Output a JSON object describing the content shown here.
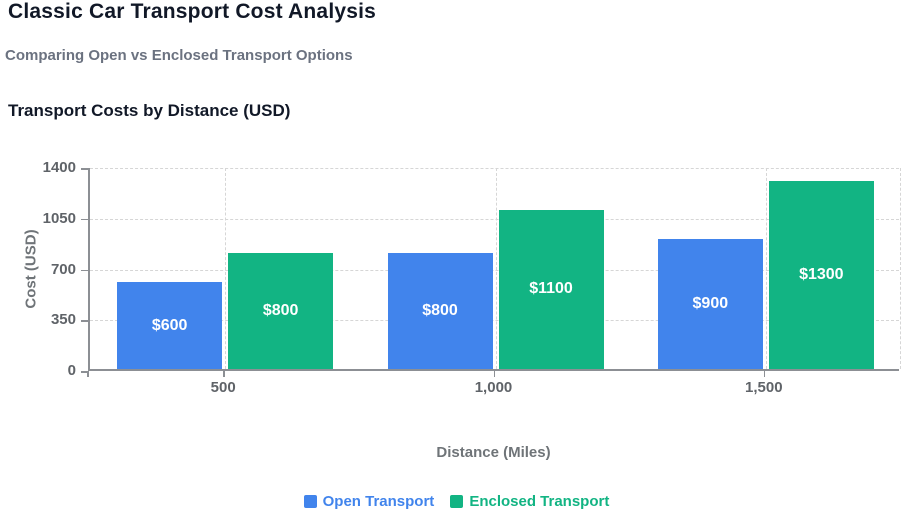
{
  "page": {
    "title": "Classic Car Transport Cost Analysis",
    "subtitle": "Comparing Open vs Enclosed Transport Options"
  },
  "chart_data": {
    "type": "bar",
    "title": "Transport Costs by Distance (USD)",
    "xlabel": "Distance (Miles)",
    "ylabel": "Cost (USD)",
    "categories": [
      "500",
      "1,000",
      "1,500"
    ],
    "series": [
      {
        "name": "Open Transport",
        "color": "#4184ec",
        "values": [
          600,
          800,
          900
        ],
        "value_labels": [
          "$600",
          "$800",
          "$900"
        ]
      },
      {
        "name": "Enclosed Transport",
        "color": "#12b483",
        "values": [
          800,
          1100,
          1300
        ],
        "value_labels": [
          "$800",
          "$1100",
          "$1300"
        ]
      }
    ],
    "ylim": [
      0,
      1400
    ],
    "yticks": [
      0,
      350,
      700,
      1050,
      1400
    ],
    "ytick_labels": [
      "0",
      "350",
      "700",
      "1050",
      "1400"
    ],
    "grid": {
      "style": "dashed",
      "horizontal": true,
      "vertical": true
    },
    "legend_position": "bottom",
    "value_label_color": "#ffffff"
  },
  "colors": {
    "title": "#111827",
    "subtitle": "#6b7280",
    "axis": "#8c8f94",
    "grid": "#d6d6d6",
    "tick_text": "#5f6368",
    "axis_title_text": "#6f7478",
    "background": "#ffffff"
  }
}
